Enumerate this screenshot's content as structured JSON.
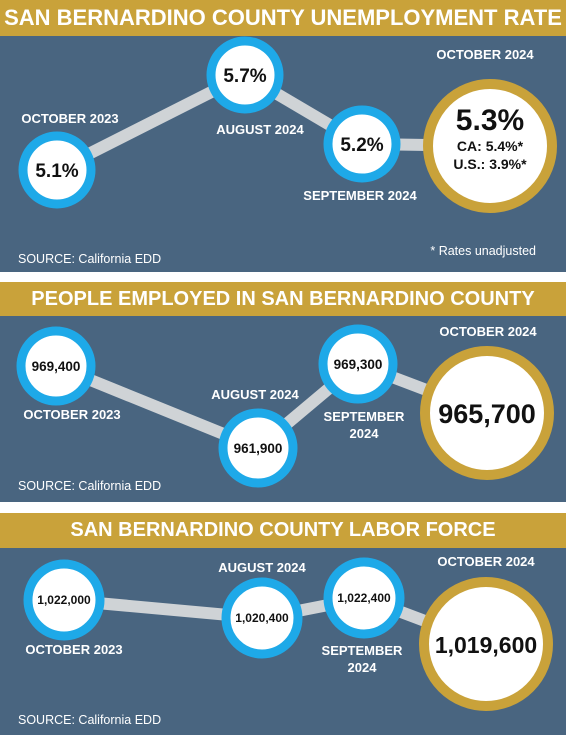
{
  "colors": {
    "panel": "#496580",
    "banner": "#c9a23a",
    "ring": "#1ea9e8",
    "ring_current": "#c9a23a",
    "connector": "#cfd3d6",
    "circle_fill": "#ffffff"
  },
  "chart_data": [
    {
      "type": "line",
      "title": "SAN BERNARDINO COUNTY UNEMPLOYMENT RATE",
      "categories": [
        "OCTOBER 2023",
        "AUGUST 2024",
        "SEPTEMBER 2024",
        "OCTOBER 2024"
      ],
      "values": [
        5.1,
        5.7,
        5.2,
        5.3
      ],
      "value_labels": [
        "5.1%",
        "5.7%",
        "5.2%",
        "5.3%"
      ],
      "callout": [
        "CA: 5.4%*",
        "U.S.: 3.9%*"
      ],
      "footnote": "* Rates unadjusted",
      "source": "SOURCE: California EDD"
    },
    {
      "type": "line",
      "title": "PEOPLE EMPLOYED IN SAN BERNARDINO COUNTY",
      "categories": [
        "OCTOBER 2023",
        "AUGUST 2024",
        "SEPTEMBER 2024",
        "OCTOBER 2024"
      ],
      "values": [
        969400,
        961900,
        969300,
        965700
      ],
      "value_labels": [
        "969,400",
        "961,900",
        "969,300",
        "965,700"
      ],
      "source": "SOURCE: California EDD"
    },
    {
      "type": "line",
      "title": "SAN BERNARDINO COUNTY LABOR FORCE",
      "categories": [
        "OCTOBER 2023",
        "AUGUST 2024",
        "SEPTEMBER 2024",
        "OCTOBER 2024"
      ],
      "values": [
        1022000,
        1020400,
        1022400,
        1019600
      ],
      "value_labels": [
        "1,022,000",
        "1,020,400",
        "1,022,400",
        "1,019,600"
      ],
      "source": "SOURCE: California EDD"
    }
  ]
}
